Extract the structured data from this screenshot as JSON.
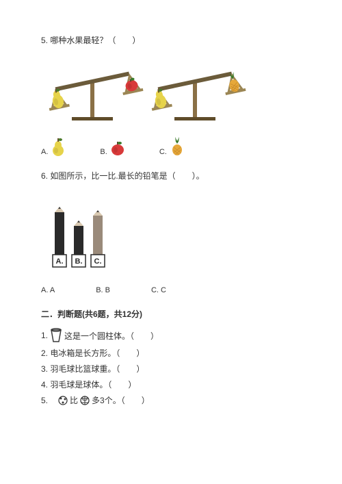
{
  "q5": {
    "text": "5. 哪种水果最轻？（　　）",
    "scale": {
      "beam_color": "#6b5b3a",
      "stand_color": "#8a7046",
      "base_color": "#5f4c2a",
      "pan_color": "#9b8654"
    },
    "pear": {
      "body": "#e6d34a",
      "shade": "#b8a83a",
      "leaf": "#4a7a2a",
      "stem": "#6b4a2a"
    },
    "apple": {
      "body": "#d83a3a",
      "shade": "#a82a2a",
      "leaf": "#3a7a2a",
      "stem": "#5a4030"
    },
    "pineapple": {
      "body": "#e6a83a",
      "shade": "#c78a2a",
      "crown": "#3a7a2a",
      "crown_dark": "#2a5a1a"
    },
    "options": {
      "a": "A.",
      "b": "B.",
      "c": "C."
    }
  },
  "q6": {
    "text": "6. 如图所示，比一比.最长的铅笔是（　　）。",
    "pencil": {
      "body_black": "#2a2a2a",
      "body_grey": "#9a8a7a",
      "tip": "#d8c8b0",
      "lead": "#3a3a3a",
      "box_border": "#2a2a2a",
      "box_bg": "#ffffff",
      "heights": {
        "a": 70,
        "b": 50,
        "c": 65
      },
      "labels": {
        "a": "A.",
        "b": "B.",
        "c": "C."
      }
    },
    "options": {
      "a": "A. A",
      "b": "B. B",
      "c": "C. C"
    }
  },
  "section2": {
    "head": "二．判断题(共6题，共12分)",
    "items": {
      "1_pre": "1.",
      "1_post": "这是一个圆柱体。（　　）",
      "2": "2. 电冰箱是长方形。（　　）",
      "3": "3. 羽毛球比篮球重。（　　）",
      "4": "4. 羽毛球是球体。（　　）",
      "5_pre": "5.　",
      "5_mid": "比",
      "5_post": "多3个。（　　）"
    },
    "cup": {
      "stroke": "#3a3a3a",
      "fill": "#ffffff"
    },
    "ball1": {
      "fill": "#ffffff",
      "stroke": "#2a2a2a",
      "accent": "#3a3a3a"
    },
    "ball2": {
      "fill": "#ffffff",
      "stroke": "#2a2a2a",
      "accent": "#3a3a3a"
    }
  }
}
